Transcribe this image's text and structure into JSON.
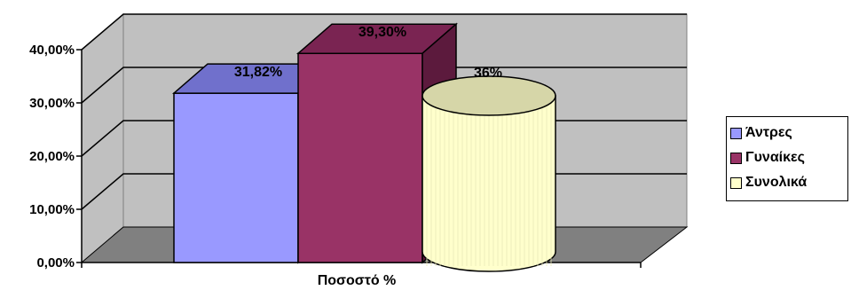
{
  "chart_data": {
    "type": "bar",
    "title": "",
    "xlabel": "Ποσοστό %",
    "ylabel": "",
    "categories": [
      "Ποσοστό %"
    ],
    "ylim": [
      0,
      0.4
    ],
    "yticks": [
      "0,00%",
      "10,00%",
      "20,00%",
      "30,00%",
      "40,00%"
    ],
    "grid": true,
    "legend_position": "right",
    "series": [
      {
        "name": "Άντρες",
        "values": [
          0.3182
        ],
        "label": "31,82%",
        "shape": "box",
        "color": "#9999ff",
        "top_color": "#7070cc",
        "side_color": "#5a5aa0"
      },
      {
        "name": "Γυναίκες",
        "values": [
          0.393
        ],
        "label": "39,30%",
        "shape": "box",
        "color": "#993366",
        "top_color": "#7a2452",
        "side_color": "#5c1a3d"
      },
      {
        "name": "Συνολικά",
        "values": [
          0.36
        ],
        "label": "36%",
        "shape": "cylinder",
        "color": "#ffffcc",
        "top_color": "#d6d6a8",
        "side_color": "#e8e8b8"
      }
    ]
  }
}
